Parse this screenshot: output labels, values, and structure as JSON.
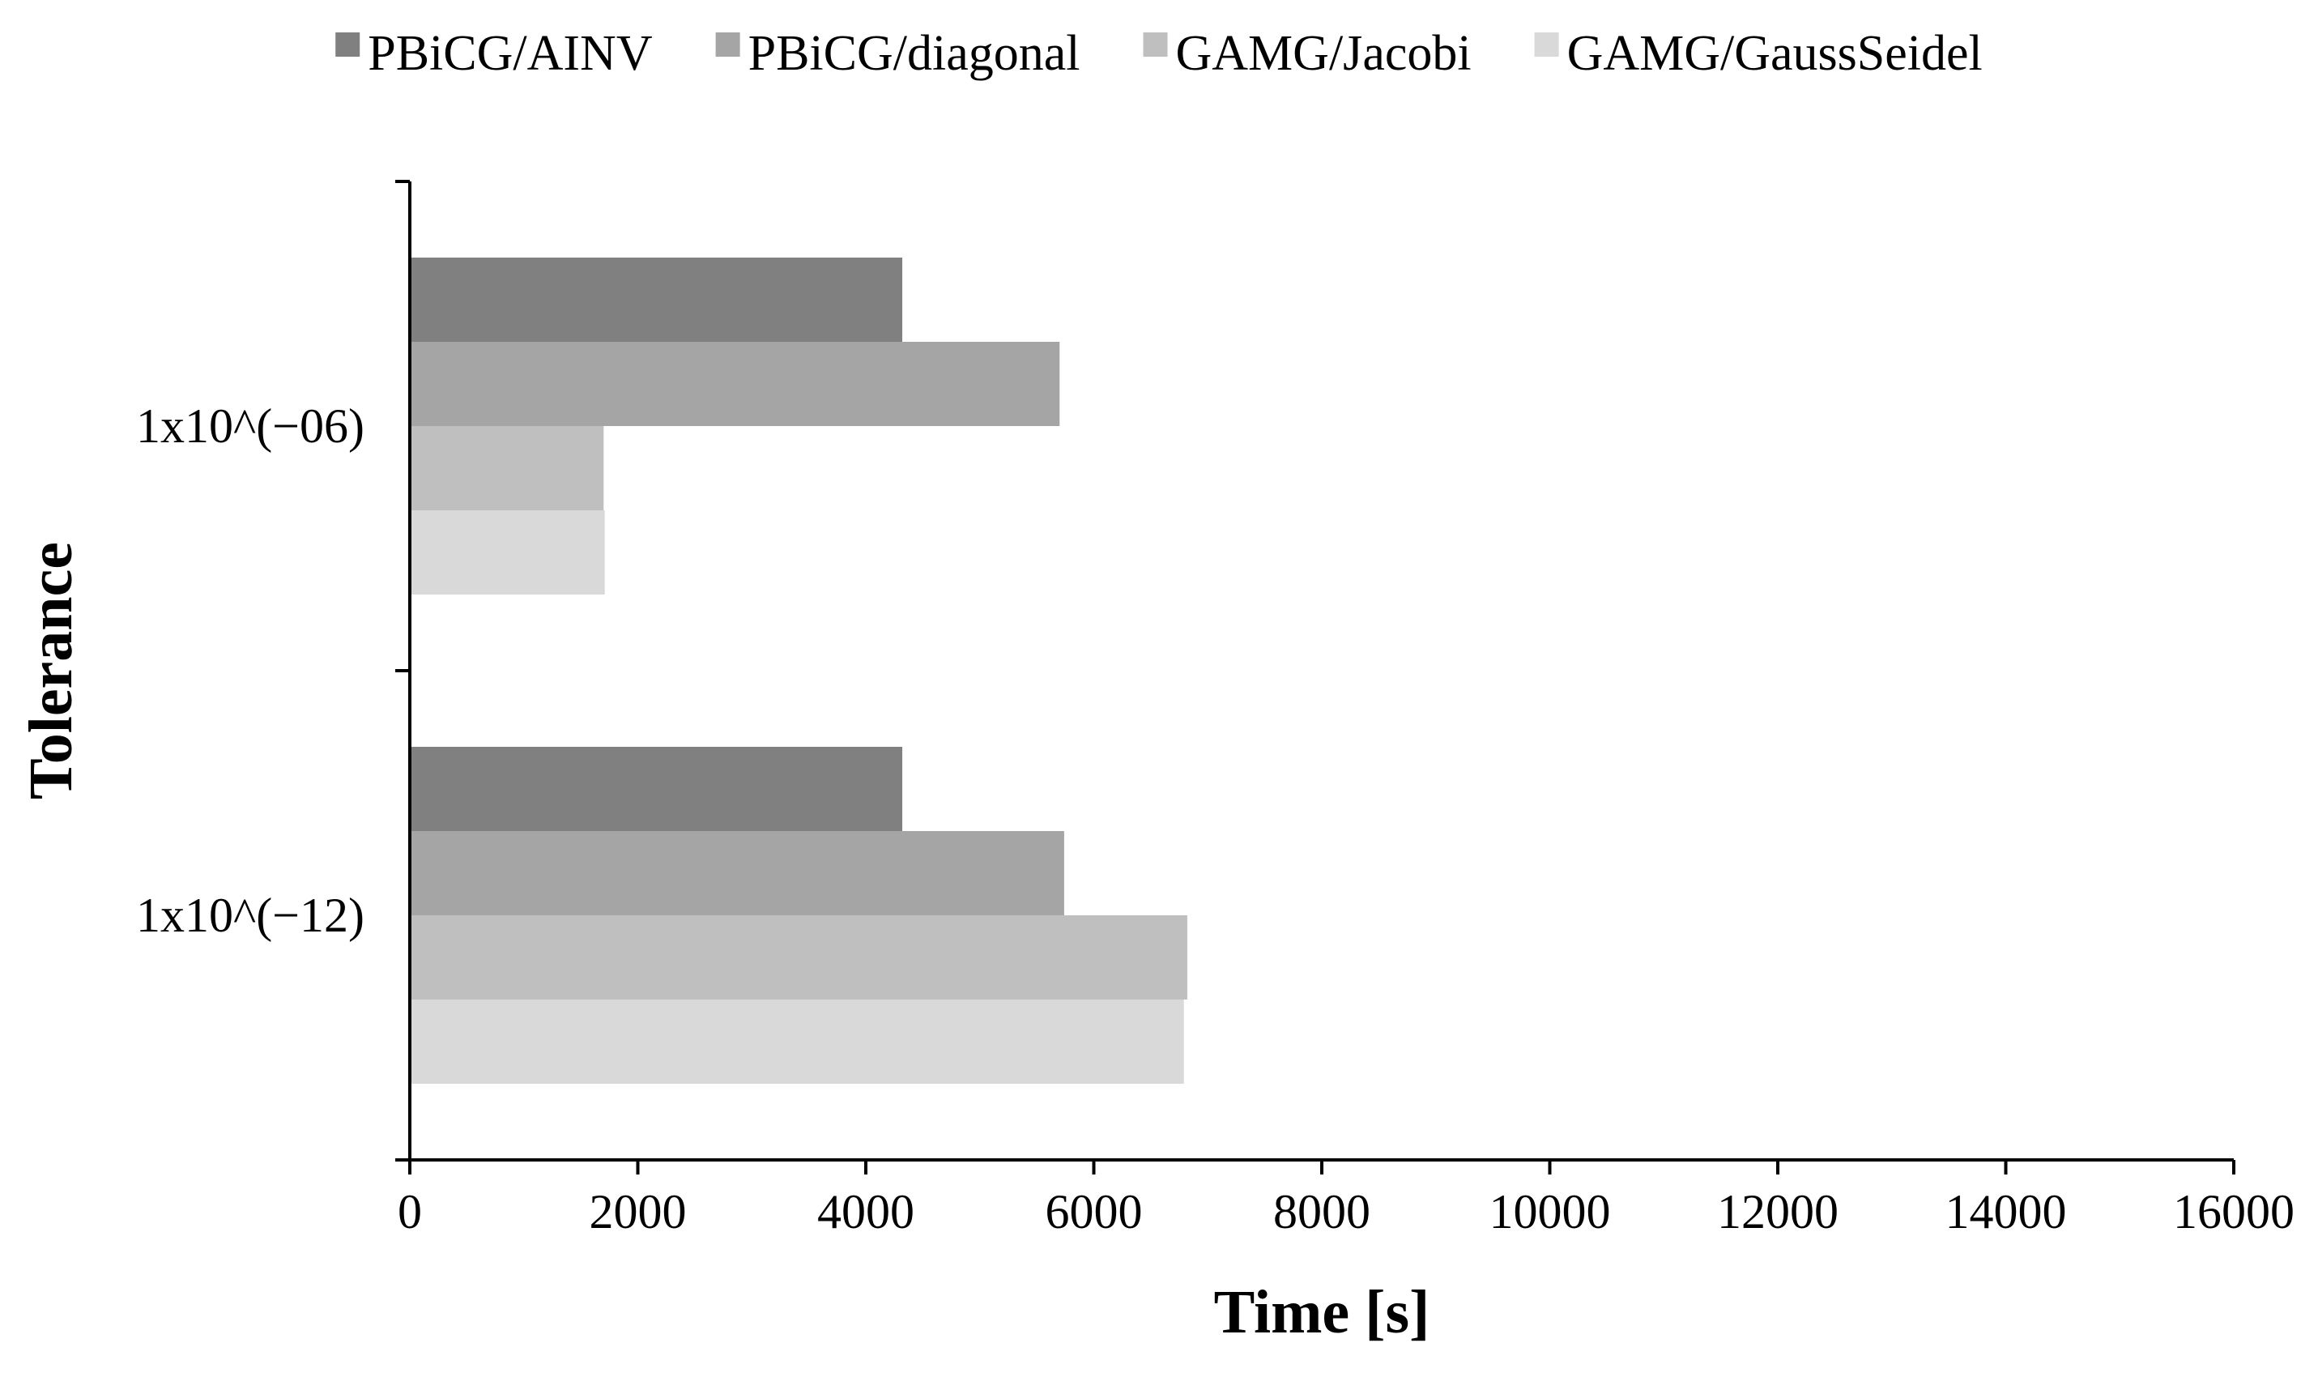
{
  "chart_data": {
    "type": "bar",
    "orientation": "horizontal",
    "title": "",
    "xlabel": "Time [s]",
    "ylabel": "Tolerance",
    "xlim": [
      0,
      16000
    ],
    "xticks": [
      0,
      2000,
      4000,
      6000,
      8000,
      10000,
      12000,
      14000,
      16000
    ],
    "categories": [
      "1x10^(−06)",
      "1x10^(−12)"
    ],
    "series": [
      {
        "name": "PBiCG/AINV",
        "color": "#808080",
        "values": [
          4320,
          4320
        ]
      },
      {
        "name": "PBiCG/diagonal",
        "color": "#a5a5a5",
        "values": [
          5700,
          5740
        ]
      },
      {
        "name": "GAMG/Jacobi",
        "color": "#bfbfbf",
        "values": [
          1700,
          6820
        ]
      },
      {
        "name": "GAMG/GaussSeidel",
        "color": "#d9d9d9",
        "values": [
          1710,
          6790
        ]
      }
    ],
    "grid": false,
    "legend_position": "top"
  }
}
